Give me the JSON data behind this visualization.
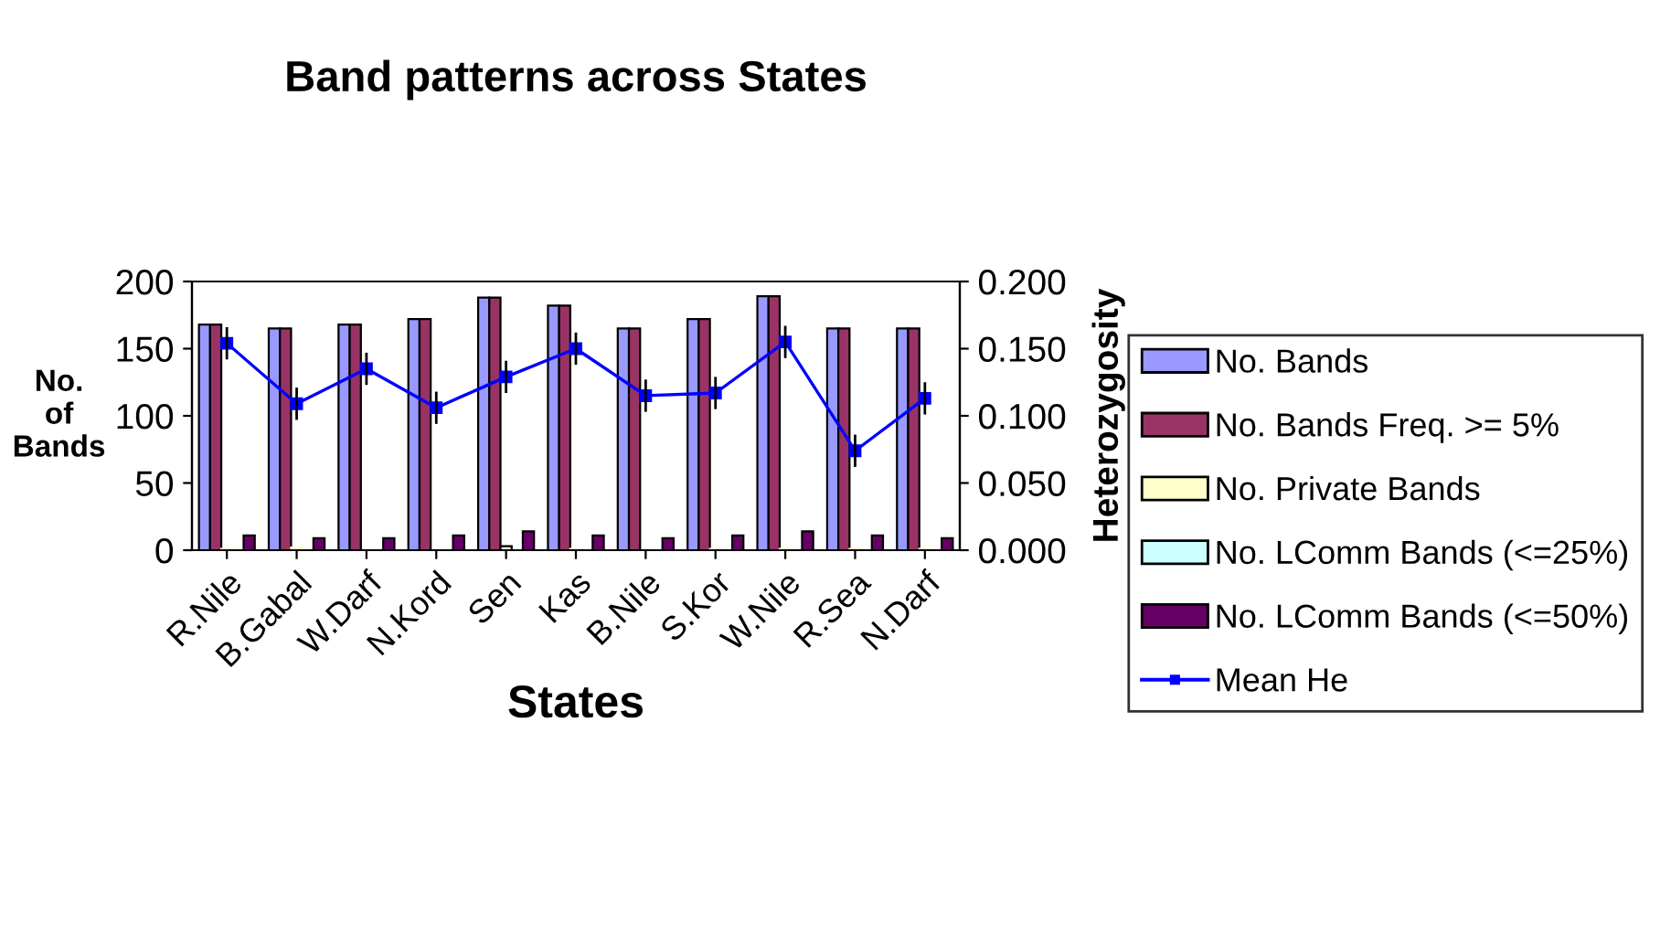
{
  "chart_data": {
    "type": "bar",
    "title": "Band patterns across States",
    "xlabel": "States",
    "ylabel": "No.\nof\nBands",
    "y2label": "Heterozygosity",
    "categories": [
      "R.Nile",
      "B.Gabal",
      "W.Darf",
      "N.Kord",
      "Sen",
      "Kas",
      "B.Nile",
      "S.Kor",
      "W.Nile",
      "R.Sea",
      "N.Darf"
    ],
    "series": [
      {
        "name": "No. Bands",
        "color": "#9999ff",
        "values": [
          168,
          165,
          168,
          172,
          188,
          182,
          165,
          172,
          189,
          165,
          165
        ]
      },
      {
        "name": "No. Bands Freq. >= 5%",
        "color": "#993366",
        "values": [
          168,
          165,
          168,
          172,
          188,
          182,
          165,
          172,
          189,
          165,
          165
        ]
      },
      {
        "name": "No. Private Bands",
        "color": "#ffffcc",
        "values": [
          1,
          2,
          0,
          0,
          3,
          1,
          0,
          1,
          1,
          1,
          1
        ]
      },
      {
        "name": "No. LComm Bands (<=25%)",
        "color": "#ccffff",
        "values": [
          0,
          0,
          0,
          0,
          0,
          0,
          0,
          0,
          0,
          0,
          0
        ]
      },
      {
        "name": "No. LComm Bands (<=50%)",
        "color": "#660066",
        "values": [
          11,
          9,
          9,
          11,
          14,
          11,
          9,
          11,
          14,
          11,
          9
        ]
      },
      {
        "name": "Mean He",
        "type": "line",
        "axis": "y2",
        "color": "#0000ff",
        "marker": "square",
        "values": [
          0.154,
          0.109,
          0.135,
          0.106,
          0.129,
          0.15,
          0.115,
          0.117,
          0.155,
          0.074,
          0.113
        ],
        "errors": [
          0.012,
          0.012,
          0.012,
          0.012,
          0.012,
          0.012,
          0.012,
          0.012,
          0.012,
          0.012,
          0.012
        ]
      }
    ],
    "ylim": [
      0,
      200
    ],
    "yticks": [
      0,
      50,
      100,
      150,
      200
    ],
    "y2lim": [
      0,
      0.2
    ],
    "y2ticks": [
      {
        "value": 0,
        "label": "0.000"
      },
      {
        "value": 0.05,
        "label": "0.050"
      },
      {
        "value": 0.1,
        "label": "0.100"
      },
      {
        "value": 0.15,
        "label": "0.150"
      },
      {
        "value": 0.2,
        "label": "0.200"
      }
    ],
    "legend": "right",
    "grid": false
  }
}
